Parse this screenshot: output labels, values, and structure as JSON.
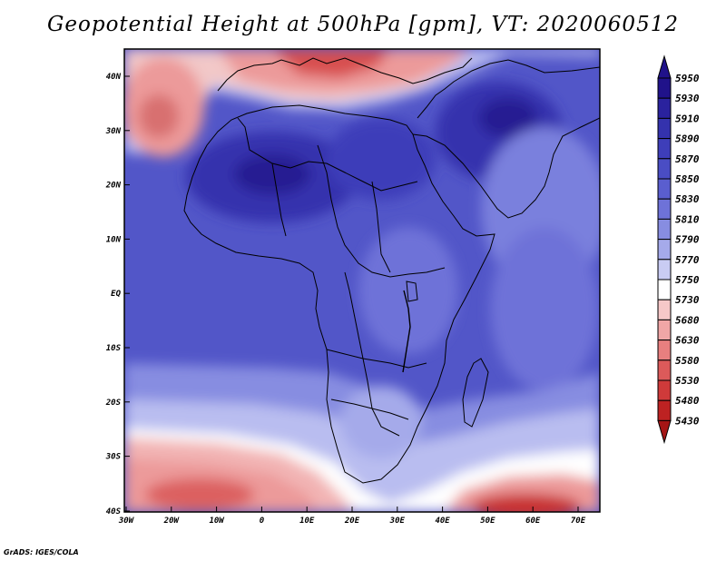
{
  "title": "Geopotential Height at 500hPa [gpm], VT: 2020060512",
  "credit": "GrADS: IGES/COLA",
  "lat_labels": [
    "40N",
    "30N",
    "20N",
    "10N",
    "EQ",
    "10S",
    "20S",
    "30S",
    "40S"
  ],
  "lon_labels": [
    "30W",
    "20W",
    "10W",
    "0",
    "10E",
    "20E",
    "30E",
    "40E",
    "50E",
    "60E",
    "70E"
  ],
  "colorbar": {
    "levels": [
      "5950",
      "5930",
      "5910",
      "5890",
      "5870",
      "5850",
      "5830",
      "5810",
      "5790",
      "5770",
      "5750",
      "5730",
      "5680",
      "5630",
      "5580",
      "5530",
      "5480",
      "5430"
    ],
    "colors": [
      "#20128a",
      "#2a229e",
      "#3432ad",
      "#3e3eb9",
      "#4a4dc4",
      "#5a5ecf",
      "#6e72d8",
      "#878de1",
      "#a5aaea",
      "#c9ccf3",
      "#ffffff",
      "#f6c8c8",
      "#f0a6a6",
      "#e87f7f",
      "#dc5a5a",
      "#cf3a3a",
      "#bd2222",
      "#a51515"
    ]
  },
  "colors": {
    "ocean_blue": "#5256c8",
    "deep_blue": "#2f2aa8",
    "light_blue": "#8d93e2",
    "pale_blue": "#b9bdf0",
    "light_red": "#f2b4b4",
    "mid_red": "#e68282",
    "dark_red": "#c83232"
  }
}
